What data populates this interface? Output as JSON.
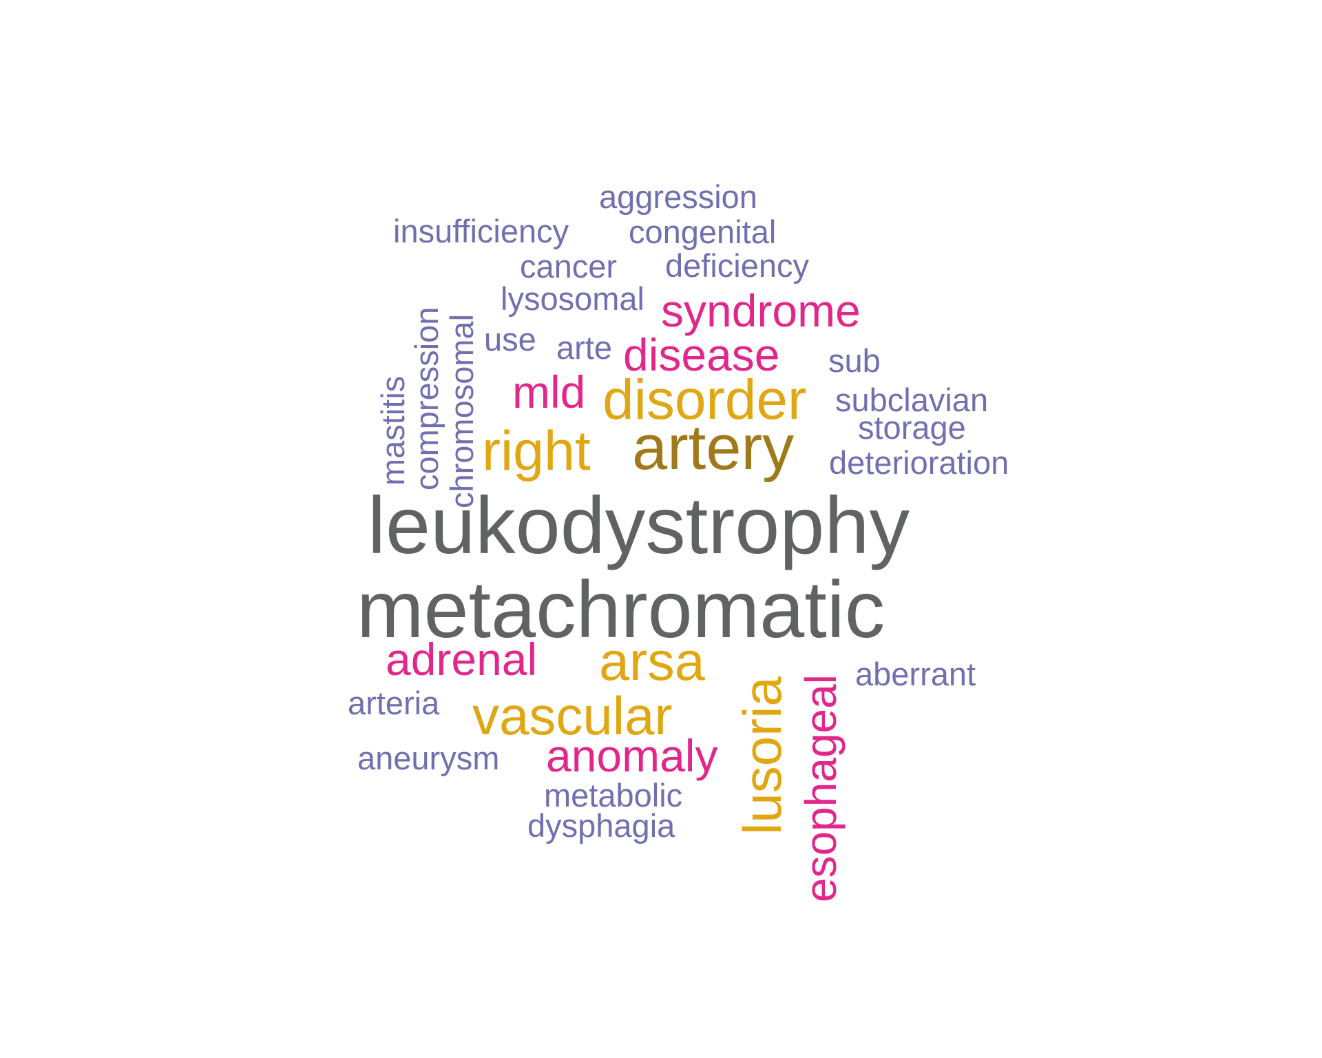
{
  "colors": {
    "grey": "#606263",
    "brown": "#A07A1A",
    "gold": "#E0A713",
    "pink": "#E2278A",
    "purple": "#7070B0"
  },
  "words": [
    {
      "text": "leukodystrophy",
      "color": "#606263",
      "rotated": false
    },
    {
      "text": "metachromatic",
      "color": "#606263",
      "rotated": false
    },
    {
      "text": "artery",
      "color": "#A07A1A",
      "rotated": false
    },
    {
      "text": "disorder",
      "color": "#E0A713",
      "rotated": false
    },
    {
      "text": "right",
      "color": "#E0A713",
      "rotated": false
    },
    {
      "text": "arsa",
      "color": "#E0A713",
      "rotated": false
    },
    {
      "text": "vascular",
      "color": "#E0A713",
      "rotated": false
    },
    {
      "text": "lusoria",
      "color": "#E0A713",
      "rotated": true
    },
    {
      "text": "syndrome",
      "color": "#E2278A",
      "rotated": false
    },
    {
      "text": "disease",
      "color": "#E2278A",
      "rotated": false
    },
    {
      "text": "mld",
      "color": "#E2278A",
      "rotated": false
    },
    {
      "text": "adrenal",
      "color": "#E2278A",
      "rotated": false
    },
    {
      "text": "anomaly",
      "color": "#E2278A",
      "rotated": false
    },
    {
      "text": "esophageal",
      "color": "#E2278A",
      "rotated": true
    },
    {
      "text": "aggression",
      "color": "#7070B0",
      "rotated": false
    },
    {
      "text": "insufficiency",
      "color": "#7070B0",
      "rotated": false
    },
    {
      "text": "congenital",
      "color": "#7070B0",
      "rotated": false
    },
    {
      "text": "cancer",
      "color": "#7070B0",
      "rotated": false
    },
    {
      "text": "deficiency",
      "color": "#7070B0",
      "rotated": false
    },
    {
      "text": "lysosomal",
      "color": "#7070B0",
      "rotated": false
    },
    {
      "text": "use",
      "color": "#7070B0",
      "rotated": false
    },
    {
      "text": "arte",
      "color": "#7070B0",
      "rotated": false
    },
    {
      "text": "sub",
      "color": "#7070B0",
      "rotated": false
    },
    {
      "text": "subclavian",
      "color": "#7070B0",
      "rotated": false
    },
    {
      "text": "storage",
      "color": "#7070B0",
      "rotated": false
    },
    {
      "text": "deterioration",
      "color": "#7070B0",
      "rotated": false
    },
    {
      "text": "aberrant",
      "color": "#7070B0",
      "rotated": false
    },
    {
      "text": "arteria",
      "color": "#7070B0",
      "rotated": false
    },
    {
      "text": "aneurysm",
      "color": "#7070B0",
      "rotated": false
    },
    {
      "text": "metabolic",
      "color": "#7070B0",
      "rotated": false
    },
    {
      "text": "dysphagia",
      "color": "#7070B0",
      "rotated": false
    },
    {
      "text": "mastitis",
      "color": "#7070B0",
      "rotated": true
    },
    {
      "text": "compression",
      "color": "#7070B0",
      "rotated": true
    },
    {
      "text": "chromosomal",
      "color": "#7070B0",
      "rotated": true
    }
  ]
}
